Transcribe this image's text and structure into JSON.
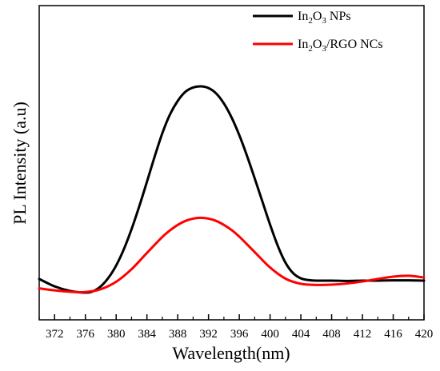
{
  "chart_data": {
    "type": "line",
    "title": "",
    "xlabel": "Wavelength(nm)",
    "ylabel": "PL Intensity (a.u)",
    "xlim": [
      370,
      420
    ],
    "ylim": [
      0,
      1
    ],
    "x_ticks": [
      372,
      376,
      380,
      384,
      388,
      392,
      396,
      400,
      404,
      408,
      412,
      416,
      420
    ],
    "y_ticks": [],
    "legend_position": "top-right",
    "grid": false,
    "series": [
      {
        "name": "In2O3 NPs",
        "legend_parts": [
          "In",
          "2",
          "O",
          "3",
          " NPs"
        ],
        "color": "#000000",
        "x": [
          370,
          372,
          374,
          376,
          377,
          378,
          379,
          380,
          381,
          382,
          383,
          384,
          385,
          386,
          387,
          388,
          389,
          390,
          391,
          392,
          393,
          394,
          395,
          396,
          397,
          398,
          399,
          400,
          401,
          402,
          403,
          404,
          405,
          406,
          408,
          410,
          412,
          414,
          416,
          418,
          420
        ],
        "y": [
          0.048,
          0.022,
          0.006,
          0.0,
          0.005,
          0.022,
          0.052,
          0.095,
          0.152,
          0.222,
          0.302,
          0.388,
          0.476,
          0.558,
          0.624,
          0.671,
          0.703,
          0.718,
          0.722,
          0.716,
          0.697,
          0.662,
          0.613,
          0.551,
          0.479,
          0.4,
          0.319,
          0.238,
          0.164,
          0.105,
          0.068,
          0.05,
          0.044,
          0.042,
          0.042,
          0.041,
          0.042,
          0.042,
          0.043,
          0.043,
          0.042
        ]
      },
      {
        "name": "In2O3/RGO NCs",
        "legend_parts": [
          "In",
          "2",
          "O",
          "3",
          "/RGO NCs"
        ],
        "color": "#ff0000",
        "x": [
          370,
          372,
          374,
          376,
          378,
          380,
          382,
          384,
          386,
          387,
          388,
          389,
          390,
          391,
          392,
          393,
          394,
          395,
          396,
          398,
          400,
          402,
          404,
          406,
          408,
          410,
          412,
          414,
          416,
          418,
          420
        ],
        "y": [
          0.015,
          0.008,
          0.003,
          0.002,
          0.012,
          0.038,
          0.082,
          0.139,
          0.195,
          0.218,
          0.237,
          0.251,
          0.259,
          0.262,
          0.259,
          0.251,
          0.237,
          0.219,
          0.196,
          0.142,
          0.088,
          0.049,
          0.031,
          0.027,
          0.028,
          0.032,
          0.039,
          0.048,
          0.056,
          0.059,
          0.053
        ]
      }
    ]
  }
}
